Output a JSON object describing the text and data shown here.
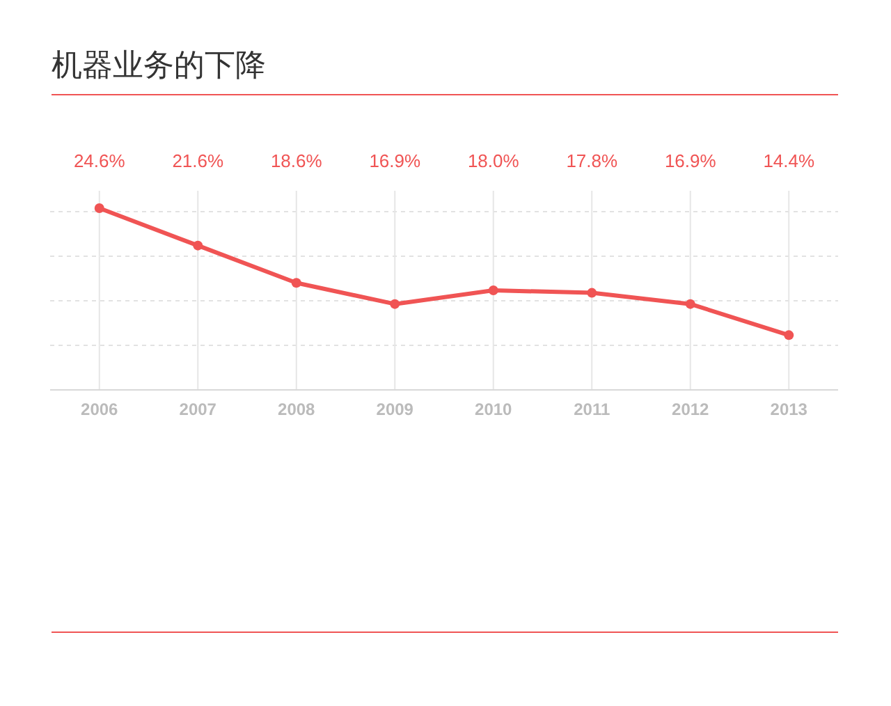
{
  "chart_data": {
    "type": "line",
    "title": "机器业务的下降",
    "categories": [
      "2006",
      "2007",
      "2008",
      "2009",
      "2010",
      "2011",
      "2012",
      "2013"
    ],
    "values": [
      24.6,
      21.6,
      18.6,
      16.9,
      18.0,
      17.8,
      16.9,
      14.4
    ],
    "value_labels": [
      "24.6%",
      "21.6%",
      "18.6%",
      "16.9%",
      "18.0%",
      "17.8%",
      "16.9%",
      "14.4%"
    ],
    "color": "#f05454",
    "marker": "circle",
    "grid": true,
    "ylim": [
      10,
      26
    ]
  }
}
